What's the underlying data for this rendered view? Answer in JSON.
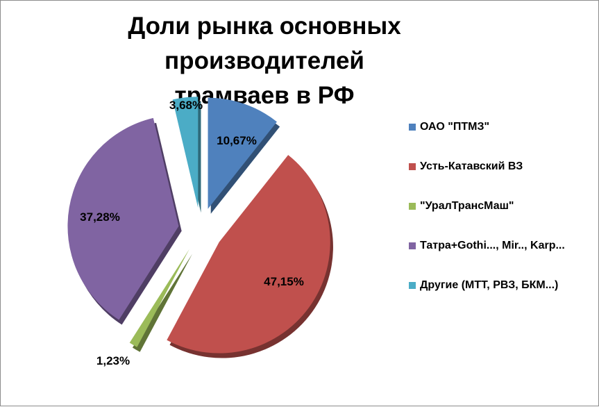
{
  "chart_data": {
    "type": "pie",
    "title_line1": "Доли рынка основных производителей",
    "title_line2": "трамваев в РФ",
    "legend_position": "right",
    "slices": [
      {
        "name": "ОАО \"ПТМЗ\"",
        "value": 10.67,
        "label": "10,67%",
        "color": "#4f81bd"
      },
      {
        "name": "Усть-Катавский ВЗ",
        "value": 47.15,
        "label": "47,15%",
        "color": "#c0504d"
      },
      {
        "name": "\"УралТрансМаш\"",
        "value": 1.23,
        "label": "1,23%",
        "color": "#9bbb59"
      },
      {
        "name": "Татра+Gothi..., Mir.., Karp...",
        "value": 37.28,
        "label": "37,28%",
        "color": "#8064a2"
      },
      {
        "name": "Другие (МТТ, РВЗ, БКМ...)",
        "value": 3.68,
        "label": "3,68%",
        "color": "#4bacc6"
      }
    ]
  }
}
